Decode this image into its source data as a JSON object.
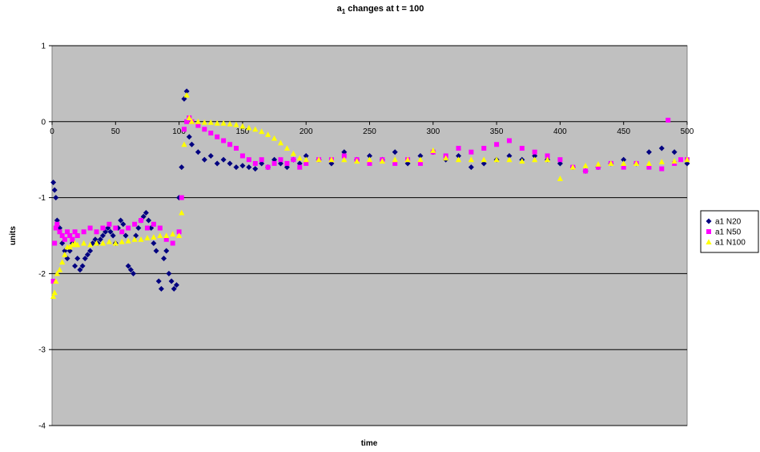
{
  "chart_data": {
    "type": "scatter",
    "title_main": "a",
    "title_sub": "1",
    "title_rest": " changes at t = 100",
    "xlabel": "time",
    "ylabel": "units",
    "xlim": [
      0,
      500
    ],
    "ylim": [
      -4,
      1
    ],
    "xticks": [
      "0",
      "50",
      "100",
      "150",
      "200",
      "250",
      "300",
      "350",
      "400",
      "450",
      "500"
    ],
    "yticks": [
      "1",
      "0",
      "-1",
      "-2",
      "-3",
      "-4"
    ],
    "grid": "horizontal",
    "plot_background": "#c0c0c0",
    "legend_placement": "right",
    "series": [
      {
        "name": "a1 N20",
        "color": "#000080",
        "marker": "diamond",
        "x": [
          1,
          2,
          3,
          4,
          6,
          8,
          10,
          12,
          14,
          16,
          18,
          20,
          22,
          24,
          26,
          28,
          30,
          32,
          34,
          36,
          38,
          40,
          42,
          44,
          46,
          48,
          50,
          52,
          54,
          56,
          58,
          60,
          62,
          64,
          66,
          68,
          70,
          72,
          74,
          76,
          78,
          80,
          82,
          84,
          86,
          88,
          90,
          92,
          94,
          96,
          98,
          100,
          102,
          104,
          106,
          108,
          110,
          115,
          120,
          125,
          130,
          135,
          140,
          145,
          150,
          155,
          160,
          165,
          170,
          175,
          180,
          185,
          190,
          195,
          200,
          210,
          220,
          230,
          240,
          250,
          260,
          270,
          280,
          290,
          300,
          310,
          320,
          330,
          340,
          350,
          360,
          370,
          380,
          390,
          400,
          410,
          420,
          430,
          440,
          450,
          460,
          470,
          480,
          490,
          500
        ],
        "y": [
          -0.8,
          -0.9,
          -1.0,
          -1.3,
          -1.4,
          -1.6,
          -1.7,
          -1.8,
          -1.7,
          -1.6,
          -1.9,
          -1.8,
          -1.95,
          -1.9,
          -1.8,
          -1.75,
          -1.7,
          -1.6,
          -1.55,
          -1.6,
          -1.55,
          -1.5,
          -1.45,
          -1.4,
          -1.45,
          -1.5,
          -1.6,
          -1.4,
          -1.3,
          -1.35,
          -1.5,
          -1.9,
          -1.95,
          -2.0,
          -1.5,
          -1.4,
          -1.3,
          -1.25,
          -1.2,
          -1.3,
          -1.4,
          -1.6,
          -1.7,
          -2.1,
          -2.2,
          -1.8,
          -1.7,
          -2.0,
          -2.1,
          -2.2,
          -2.15,
          -1.0,
          -0.6,
          0.3,
          0.4,
          -0.2,
          -0.3,
          -0.4,
          -0.5,
          -0.45,
          -0.55,
          -0.5,
          -0.55,
          -0.6,
          -0.58,
          -0.6,
          -0.62,
          -0.55,
          -0.6,
          -0.5,
          -0.55,
          -0.6,
          -0.5,
          -0.55,
          -0.45,
          -0.5,
          -0.55,
          -0.4,
          -0.5,
          -0.45,
          -0.5,
          -0.4,
          -0.55,
          -0.45,
          -0.4,
          -0.5,
          -0.45,
          -0.6,
          -0.55,
          -0.5,
          -0.45,
          -0.5,
          -0.45,
          -0.5,
          -0.55,
          -0.6,
          -0.65,
          -0.6,
          -0.55,
          -0.5,
          -0.55,
          -0.4,
          -0.35,
          -0.4,
          -0.55
        ]
      },
      {
        "name": "a1 N50",
        "color": "#ff00ff",
        "marker": "square",
        "x": [
          1,
          2,
          3,
          4,
          6,
          8,
          10,
          12,
          14,
          16,
          18,
          20,
          25,
          30,
          35,
          40,
          45,
          50,
          55,
          60,
          65,
          70,
          75,
          80,
          85,
          90,
          95,
          100,
          102,
          104,
          106,
          108,
          110,
          115,
          120,
          125,
          130,
          135,
          140,
          145,
          150,
          155,
          160,
          165,
          170,
          175,
          180,
          185,
          190,
          195,
          200,
          210,
          220,
          230,
          240,
          250,
          260,
          270,
          280,
          290,
          300,
          310,
          320,
          330,
          340,
          350,
          360,
          370,
          380,
          390,
          400,
          410,
          420,
          430,
          440,
          450,
          460,
          470,
          480,
          485,
          490,
          495,
          500
        ],
        "y": [
          -2.1,
          -1.6,
          -1.4,
          -1.35,
          -1.45,
          -1.5,
          -1.55,
          -1.45,
          -1.5,
          -1.55,
          -1.45,
          -1.5,
          -1.45,
          -1.4,
          -1.45,
          -1.4,
          -1.35,
          -1.4,
          -1.45,
          -1.4,
          -1.35,
          -1.3,
          -1.4,
          -1.35,
          -1.4,
          -1.55,
          -1.6,
          -1.45,
          -1.0,
          -0.1,
          0.0,
          0.05,
          0.0,
          -0.05,
          -0.1,
          -0.15,
          -0.2,
          -0.25,
          -0.3,
          -0.35,
          -0.45,
          -0.5,
          -0.55,
          -0.5,
          -0.6,
          -0.55,
          -0.5,
          -0.55,
          -0.5,
          -0.6,
          -0.55,
          -0.5,
          -0.5,
          -0.45,
          -0.5,
          -0.55,
          -0.5,
          -0.55,
          -0.5,
          -0.55,
          -0.4,
          -0.45,
          -0.35,
          -0.4,
          -0.35,
          -0.3,
          -0.25,
          -0.35,
          -0.4,
          -0.45,
          -0.5,
          -0.6,
          -0.65,
          -0.6,
          -0.55,
          -0.6,
          -0.55,
          -0.6,
          -0.62,
          0.02,
          -0.55,
          -0.5,
          -0.5
        ]
      },
      {
        "name": "a1 N100",
        "color": "#ffff00",
        "marker": "triangle",
        "x": [
          1,
          2,
          3,
          4,
          6,
          8,
          10,
          12,
          14,
          16,
          18,
          20,
          25,
          30,
          35,
          40,
          45,
          50,
          55,
          60,
          65,
          70,
          75,
          80,
          85,
          90,
          95,
          100,
          102,
          104,
          106,
          108,
          110,
          115,
          120,
          125,
          130,
          135,
          140,
          145,
          150,
          155,
          160,
          165,
          170,
          175,
          180,
          185,
          190,
          195,
          200,
          210,
          220,
          230,
          240,
          250,
          260,
          270,
          280,
          290,
          300,
          310,
          320,
          330,
          340,
          350,
          360,
          370,
          380,
          390,
          400,
          410,
          420,
          430,
          440,
          450,
          460,
          470,
          480,
          490,
          500
        ],
        "y": [
          -2.3,
          -2.25,
          -2.1,
          -2.0,
          -1.95,
          -1.85,
          -1.75,
          -1.65,
          -1.65,
          -1.62,
          -1.6,
          -1.62,
          -1.6,
          -1.62,
          -1.6,
          -1.6,
          -1.58,
          -1.6,
          -1.58,
          -1.57,
          -1.55,
          -1.55,
          -1.53,
          -1.52,
          -1.5,
          -1.5,
          -1.48,
          -1.5,
          -1.2,
          -0.3,
          0.35,
          0.05,
          0.0,
          0.0,
          -0.01,
          -0.01,
          -0.02,
          -0.02,
          -0.03,
          -0.04,
          -0.06,
          -0.08,
          -0.1,
          -0.13,
          -0.17,
          -0.22,
          -0.28,
          -0.35,
          -0.42,
          -0.48,
          -0.5,
          -0.5,
          -0.5,
          -0.5,
          -0.52,
          -0.5,
          -0.52,
          -0.5,
          -0.5,
          -0.5,
          -0.38,
          -0.48,
          -0.5,
          -0.5,
          -0.5,
          -0.5,
          -0.5,
          -0.52,
          -0.5,
          -0.5,
          -0.75,
          -0.6,
          -0.58,
          -0.56,
          -0.55,
          -0.55,
          -0.55,
          -0.55,
          -0.53,
          -0.52,
          -0.5
        ]
      }
    ]
  }
}
